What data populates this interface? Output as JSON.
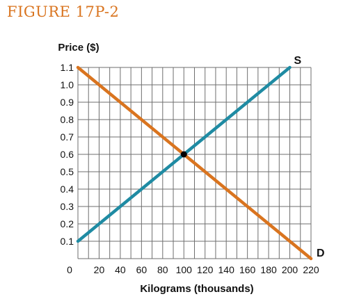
{
  "figure_label": "FIGURE 17P-2",
  "chart_data": {
    "type": "line",
    "title": "",
    "ylabel": "Price ($)",
    "xlabel": "Kilograms (thousands)",
    "xlim": [
      0,
      220
    ],
    "ylim": [
      0,
      1.1
    ],
    "x_ticks": [
      0,
      20,
      40,
      60,
      80,
      100,
      120,
      140,
      160,
      180,
      200,
      220
    ],
    "x_tick_labels": [
      "0",
      "20",
      "40",
      "60",
      "80",
      "100",
      "120",
      "140",
      "160",
      "180",
      "200",
      "220"
    ],
    "y_ticks": [
      0.1,
      0.2,
      0.3,
      0.4,
      0.5,
      0.6,
      0.7,
      0.8,
      0.9,
      1.0,
      1.1
    ],
    "y_tick_labels": [
      "0.1",
      "0.2",
      "0.3",
      "0.4",
      "0.5",
      "0.6",
      "0.7",
      "0.8",
      "0.9",
      "1.0",
      "1.1"
    ],
    "grid": true,
    "series": [
      {
        "name": "S",
        "color": "#1f8ba3",
        "x": [
          0,
          200
        ],
        "y": [
          0.1,
          1.1
        ]
      },
      {
        "name": "D",
        "color": "#d9741f",
        "x": [
          0,
          220
        ],
        "y": [
          1.1,
          0.0
        ]
      }
    ],
    "points": [
      {
        "x": 100,
        "y": 0.6,
        "color": "#000000"
      }
    ]
  }
}
